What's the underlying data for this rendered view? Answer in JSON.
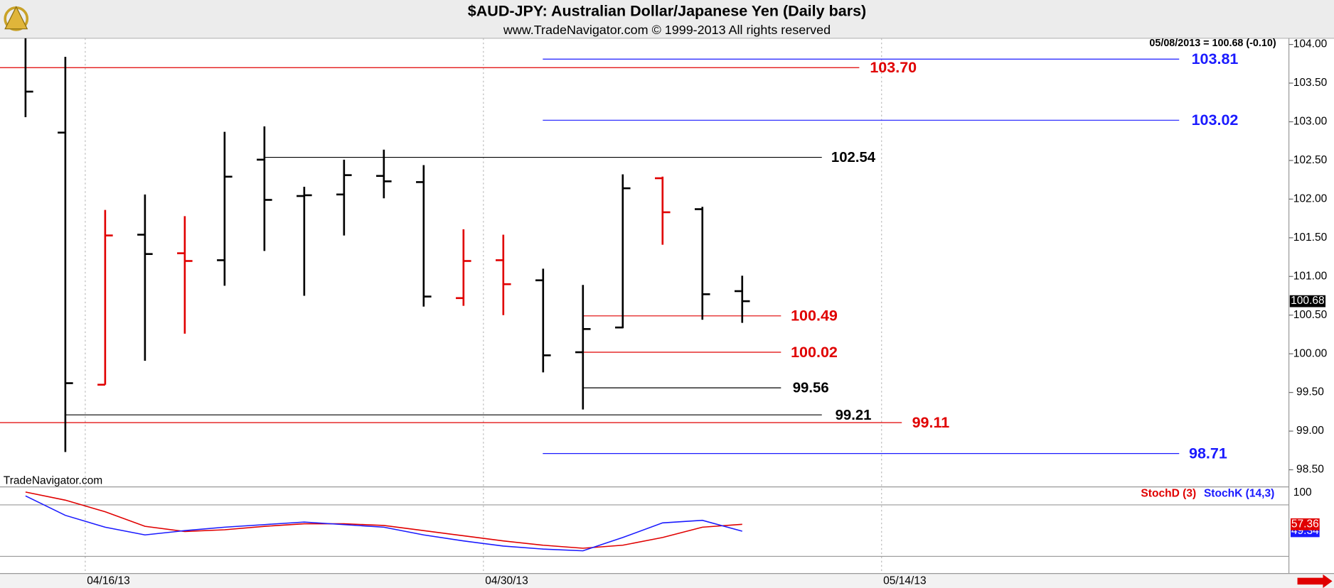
{
  "chart_data": [
    {
      "type": "ohlc",
      "title": "$AUD-JPY:  Australian Dollar/Japanese Yen  (Daily bars)",
      "subtitle": "www.TradeNavigator.com © 1999-2013 All rights reserved",
      "header_note": "05/08/2013 = 100.68 (-0.10)",
      "watermark": "TradeNavigator.com",
      "categories": [
        null,
        null,
        "04/16/13",
        null,
        null,
        null,
        null,
        null,
        null,
        null,
        null,
        null,
        "04/30/13",
        null,
        null,
        null,
        null,
        null,
        null,
        null,
        null,
        null,
        "05/14/13"
      ],
      "open": [
        null,
        102.86,
        99.6,
        101.54,
        101.3,
        101.21,
        102.51,
        102.04,
        102.06,
        102.3,
        102.22,
        100.72,
        101.21,
        100.95,
        100.02,
        100.34,
        102.27,
        101.87,
        100.81,
        null,
        null,
        null,
        null
      ],
      "high": [
        104.08,
        103.84,
        101.86,
        102.06,
        101.78,
        102.87,
        102.94,
        102.16,
        102.51,
        102.64,
        102.44,
        101.61,
        101.54,
        101.1,
        100.89,
        102.32,
        102.29,
        101.9,
        101.01,
        null,
        null,
        null,
        null
      ],
      "low": [
        103.06,
        98.73,
        99.6,
        99.91,
        100.26,
        100.88,
        101.33,
        100.75,
        101.53,
        102.01,
        100.61,
        100.62,
        100.5,
        99.76,
        99.28,
        100.33,
        101.41,
        100.44,
        100.4,
        null,
        null,
        null,
        null
      ],
      "close": [
        103.39,
        99.62,
        101.53,
        101.29,
        101.2,
        102.29,
        101.99,
        102.05,
        102.31,
        102.23,
        100.74,
        101.2,
        100.9,
        99.98,
        100.32,
        102.14,
        101.83,
        100.77,
        100.68,
        null,
        null,
        null,
        null
      ],
      "bar_colors": [
        "#000000",
        "#000000",
        "#e00000",
        "#000000",
        "#e00000",
        "#000000",
        "#000000",
        "#000000",
        "#000000",
        "#000000",
        "#000000",
        "#e00000",
        "#e00000",
        "#000000",
        "#000000",
        "#000000",
        "#e00000",
        "#000000",
        "#000000",
        null,
        null,
        null,
        null
      ],
      "ylim": [
        98.29,
        104.08
      ],
      "yticks": [
        {
          "value": 104,
          "label": "104.00"
        },
        {
          "value": 103.5,
          "label": "103.50"
        },
        {
          "value": 103,
          "label": "103.00"
        },
        {
          "value": 102.5,
          "label": "102.50"
        },
        {
          "value": 102,
          "label": "102.00"
        },
        {
          "value": 101.5,
          "label": "101.50"
        },
        {
          "value": 101,
          "label": "101.00"
        },
        {
          "value": 100.5,
          "label": "100.50"
        },
        {
          "value": 100,
          "label": "100.00"
        },
        {
          "value": 99.5,
          "label": "99.50"
        },
        {
          "value": 99,
          "label": "99.00"
        },
        {
          "value": 98.5,
          "label": "98.50"
        }
      ],
      "last": 100.68,
      "levels": [
        {
          "value": 103.81,
          "label": "103.81",
          "color": "#1a1aff"
        },
        {
          "value": 103.7,
          "label": "103.70",
          "color": "#e00000"
        },
        {
          "value": 103.02,
          "label": "103.02",
          "color": "#1a1aff"
        },
        {
          "value": 102.54,
          "label": "102.54",
          "color": "#000000"
        },
        {
          "value": 100.49,
          "label": "100.49",
          "color": "#e00000"
        },
        {
          "value": 100.02,
          "label": "100.02",
          "color": "#e00000"
        },
        {
          "value": 99.56,
          "label": "99.56",
          "color": "#000000"
        },
        {
          "value": 99.21,
          "label": "99.21",
          "color": "#000000"
        },
        {
          "value": 99.11,
          "label": "99.11",
          "color": "#e00000"
        },
        {
          "value": 98.71,
          "label": "98.71",
          "color": "#1a1aff"
        }
      ],
      "xgrid": true
    },
    {
      "type": "line",
      "series": [
        {
          "name": "StochD (3)",
          "color": "#e00000",
          "values": [
            95,
            85.5,
            72,
            55,
            49,
            51,
            55,
            58,
            58,
            56,
            50,
            44,
            38,
            33,
            29.5,
            33,
            42,
            54,
            57.36
          ]
        },
        {
          "name": "StochK (14,3)",
          "color": "#1a1aff",
          "values": [
            90.5,
            67.8,
            54,
            45,
            50,
            54,
            57,
            60,
            57,
            54,
            45,
            38,
            32,
            28.5,
            26.5,
            42,
            59,
            62,
            49.34
          ]
        }
      ],
      "ylim": [
        0,
        100
      ],
      "yticks": [
        100
      ],
      "levels": [
        80,
        20
      ]
    }
  ]
}
